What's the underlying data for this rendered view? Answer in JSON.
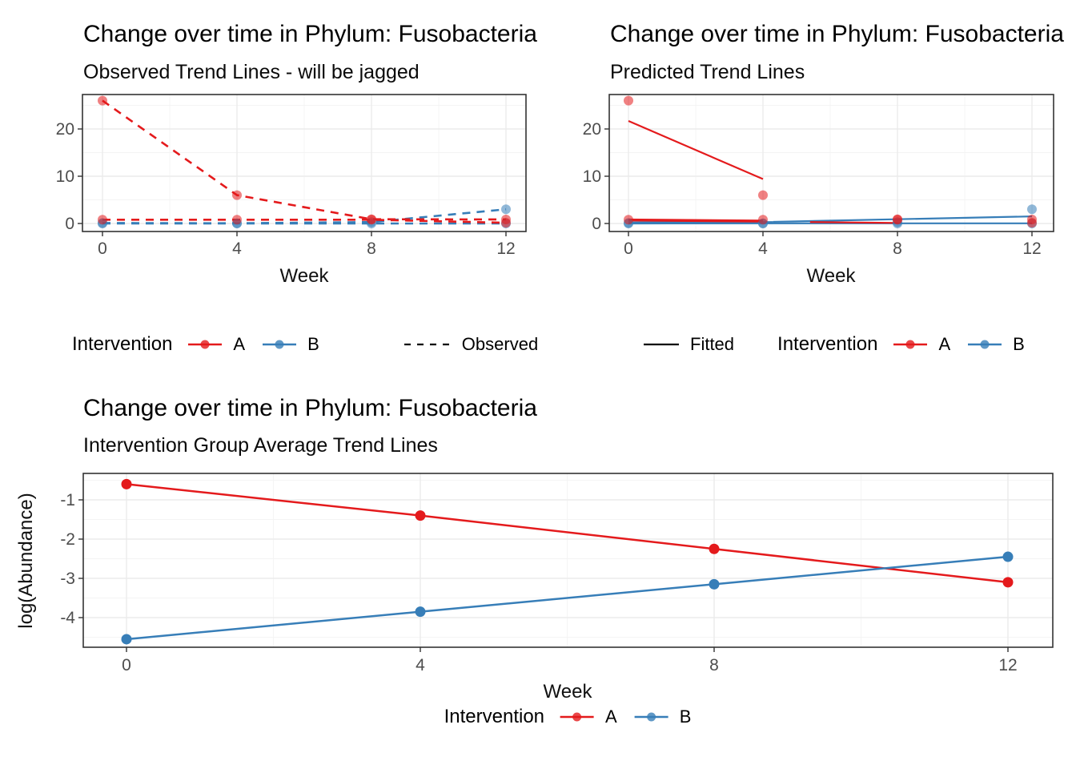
{
  "colors": {
    "A": "#E41A1C",
    "B": "#377EB8",
    "black": "#000000",
    "grid_major": "#EBEBEB",
    "grid_minor": "#F4F4F4",
    "panel_border": "#333333",
    "tick_label": "#4D4D4D"
  },
  "chart_data": [
    {
      "type": "line",
      "title": "Change over time in Phylum: Fusobacteria",
      "subtitle": "Observed Trend Lines - will be jagged",
      "xlabel": "Week",
      "ylabel": "",
      "x_ticks": [
        0,
        4,
        8,
        12
      ],
      "y_ticks": [
        0,
        10,
        20
      ],
      "xlim": [
        -0.6,
        12.6
      ],
      "ylim": [
        -1.7,
        27.3
      ],
      "grid": true,
      "line_style": "dashed",
      "point_alpha": 0.55,
      "series": [
        {
          "name": "B-subject-flat",
          "key": "B",
          "dashed": true,
          "points": [
            [
              0,
              0
            ],
            [
              4,
              0
            ],
            [
              8,
              0
            ],
            [
              12,
              0
            ]
          ]
        },
        {
          "name": "B-subject-rising",
          "key": "B",
          "dashed": true,
          "points": [
            [
              0,
              0.1
            ],
            [
              4,
              0.05
            ],
            [
              8,
              0.3
            ],
            [
              12,
              3
            ]
          ]
        },
        {
          "name": "A-subject-low",
          "key": "A",
          "dashed": true,
          "points": [
            [
              0,
              0.8
            ],
            [
              4,
              0.8
            ],
            [
              8,
              0.8
            ],
            [
              12,
              0.15
            ]
          ]
        },
        {
          "name": "A-subject-high",
          "key": "A",
          "dashed": true,
          "points": [
            [
              0,
              26
            ],
            [
              4,
              6
            ],
            [
              8,
              0.9
            ],
            [
              12,
              0.85
            ]
          ]
        }
      ],
      "legend": {
        "title": "Intervention",
        "entries": [
          {
            "label": "A",
            "key": "A"
          },
          {
            "label": "B",
            "key": "B"
          }
        ],
        "style_entry": {
          "label": "Observed",
          "style": "dashed"
        }
      }
    },
    {
      "type": "line",
      "title": "Change over time in Phylum: Fusobacteria",
      "subtitle": "Predicted Trend Lines",
      "xlabel": "Week",
      "ylabel": "",
      "x_ticks": [
        0,
        4,
        8,
        12
      ],
      "y_ticks": [
        0,
        10,
        20
      ],
      "xlim": [
        -0.6,
        12.6
      ],
      "ylim": [
        -1.7,
        27.3
      ],
      "grid": true,
      "line_style": "solid",
      "point_alpha": 0.55,
      "series": [
        {
          "name": "B-fit-flat",
          "key": "B",
          "dots": false,
          "width": 2.2,
          "points": [
            [
              0,
              0.03
            ],
            [
              12,
              0.03
            ]
          ]
        },
        {
          "name": "B-fit-thick",
          "key": "B",
          "dots": false,
          "width": 3.5,
          "points": [
            [
              0,
              0.1
            ],
            [
              4.3,
              0.2
            ]
          ]
        },
        {
          "name": "B-fit-rising",
          "key": "B",
          "dots": false,
          "width": 2.2,
          "points": [
            [
              4.3,
              0.35
            ],
            [
              12,
              1.5
            ]
          ]
        },
        {
          "name": "A-fit-thick",
          "key": "A",
          "dots": false,
          "width": 3.5,
          "points": [
            [
              0,
              0.75
            ],
            [
              4,
              0.5
            ]
          ]
        },
        {
          "name": "A-fit-mid",
          "key": "A",
          "dots": false,
          "width": 2.2,
          "points": [
            [
              5.4,
              0.3
            ],
            [
              8,
              0.12
            ]
          ]
        },
        {
          "name": "A-fit-high",
          "key": "A",
          "dots": false,
          "width": 2.2,
          "points": [
            [
              0,
              21.7
            ],
            [
              4,
              9.4
            ]
          ]
        },
        {
          "name": "B-points-flat",
          "key": "B",
          "line": false,
          "points": [
            [
              0,
              0
            ],
            [
              4,
              0
            ],
            [
              8,
              0
            ],
            [
              12,
              0
            ]
          ]
        },
        {
          "name": "B-points-rising",
          "key": "B",
          "line": false,
          "points": [
            [
              0,
              0.1
            ],
            [
              4,
              0.05
            ],
            [
              8,
              0.3
            ],
            [
              12,
              3
            ]
          ]
        },
        {
          "name": "A-points-low",
          "key": "A",
          "line": false,
          "points": [
            [
              0,
              0.8
            ],
            [
              4,
              0.8
            ],
            [
              8,
              0.8
            ],
            [
              12,
              0.15
            ]
          ]
        },
        {
          "name": "A-points-high",
          "key": "A",
          "line": false,
          "points": [
            [
              0,
              26
            ],
            [
              4,
              6
            ],
            [
              8,
              0.9
            ],
            [
              12,
              0.85
            ]
          ]
        }
      ],
      "legend": {
        "title": "Intervention",
        "entries": [
          {
            "label": "A",
            "key": "A"
          },
          {
            "label": "B",
            "key": "B"
          }
        ],
        "style_entry": {
          "label": "Fitted",
          "style": "solid"
        }
      }
    },
    {
      "type": "line",
      "title": "Change over time in Phylum: Fusobacteria",
      "subtitle": "Intervention Group Average Trend Lines",
      "xlabel": "Week",
      "ylabel": "log(Abundance)",
      "x_ticks": [
        0,
        4,
        8,
        12
      ],
      "y_ticks": [
        -1,
        -2,
        -3,
        -4
      ],
      "xlim": [
        -0.6,
        12.6
      ],
      "ylim": [
        -4.76,
        -0.33
      ],
      "grid": true,
      "line_style": "solid",
      "point_alpha": 1,
      "series": [
        {
          "name": "A-group-average",
          "key": "A",
          "width": 2.5,
          "r": 6.5,
          "points": [
            [
              0,
              -0.6
            ],
            [
              4,
              -1.4
            ],
            [
              8,
              -2.25
            ],
            [
              12,
              -3.1
            ]
          ]
        },
        {
          "name": "B-group-average",
          "key": "B",
          "width": 2.5,
          "r": 6.5,
          "points": [
            [
              0,
              -4.55
            ],
            [
              4,
              -3.85
            ],
            [
              8,
              -3.15
            ],
            [
              12,
              -2.45
            ]
          ]
        }
      ],
      "legend": {
        "title": "Intervention",
        "entries": [
          {
            "label": "A",
            "key": "A"
          },
          {
            "label": "B",
            "key": "B"
          }
        ]
      }
    }
  ]
}
